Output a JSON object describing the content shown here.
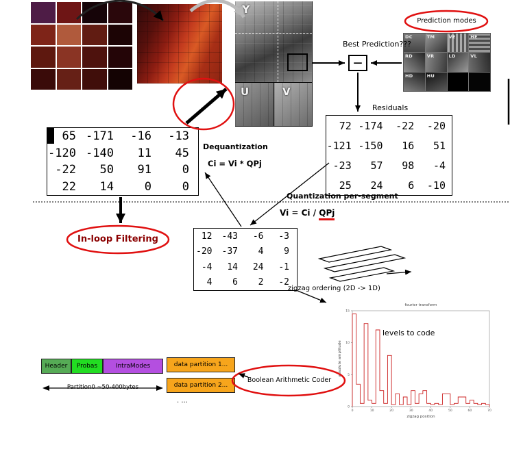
{
  "planes": {
    "y": "Y",
    "u": "U",
    "v": "V"
  },
  "prediction": {
    "circled_label": "Prediction modes",
    "best_label": "Best Prediction???",
    "minus": "—",
    "modes": [
      "DC",
      "TM",
      "VE",
      "HE",
      "RD",
      "VR",
      "LD",
      "VL",
      "HD",
      "HU"
    ]
  },
  "residuals": {
    "label": "Residuals",
    "matrix": [
      [
        "72",
        "-174",
        "-22",
        "-20"
      ],
      [
        "-121",
        "-150",
        "16",
        "51"
      ],
      [
        "-23",
        "57",
        "98",
        "-4"
      ],
      [
        "25",
        "24",
        "6",
        "-10"
      ]
    ]
  },
  "dequantized": {
    "title": "Dequantization",
    "formula": "Ci = Vi * QPj",
    "matrix": [
      [
        "65",
        "-171",
        "-16",
        "-13"
      ],
      [
        "-120",
        "-140",
        "11",
        "45"
      ],
      [
        "-22",
        "50",
        "91",
        "0"
      ],
      [
        "22",
        "14",
        "0",
        "0"
      ]
    ]
  },
  "quantization": {
    "segment_label": "Quantization per-segment",
    "formula_prefix": "Vi = Ci / ",
    "formula_qp": "QPj",
    "matrix": [
      [
        "12",
        "-43",
        "-6",
        "-3"
      ],
      [
        "-20",
        "-37",
        "4",
        "9"
      ],
      [
        "-4",
        "14",
        "24",
        "-1"
      ],
      [
        "4",
        "6",
        "2",
        "-2"
      ]
    ]
  },
  "inloop_label": "In-loop Filtering",
  "zigzag_label": "zigzag ordering  (2D -> 1D)",
  "bitstream": {
    "header": "Header",
    "probas": "Probas",
    "intra_modes": "IntraModes",
    "partition0_note": "Partition0  ~50-400bytes",
    "partitions": [
      "data partition 1...",
      "data partition 2..."
    ],
    "ellipsis": ". ...",
    "coder": "Boolean Arithmetic Coder"
  },
  "chart_data": {
    "type": "line",
    "annotation": "levels to code",
    "title": "fourier transform",
    "xlabel": "zigzag position",
    "ylabel": "absolute amplitude",
    "xlim": [
      0,
      70
    ],
    "ylim": [
      0,
      15
    ],
    "xticks": [
      0,
      10,
      20,
      30,
      40,
      50,
      60,
      70
    ],
    "yticks": [
      0,
      5,
      10,
      15
    ],
    "x": [
      0,
      2,
      4,
      6,
      8,
      10,
      12,
      14,
      16,
      18,
      20,
      22,
      24,
      26,
      28,
      30,
      32,
      34,
      36,
      38,
      40,
      42,
      44,
      46,
      48,
      50,
      52,
      54,
      56,
      58,
      60,
      62,
      64,
      66,
      68,
      70
    ],
    "values": [
      14.5,
      3.5,
      0.5,
      13,
      1,
      0.5,
      12,
      2.5,
      0.5,
      8,
      0.3,
      2,
      0.3,
      1.5,
      0.3,
      2.5,
      0.5,
      2,
      2.5,
      0.5,
      0.3,
      0.5,
      0.3,
      2,
      2,
      0.3,
      0.5,
      1.5,
      1.5,
      0.5,
      1,
      0.5,
      0.3,
      0.5,
      0.3,
      0.2
    ],
    "line_color": "#cc2222"
  },
  "colors": {
    "accent_red": "#e01010",
    "orange": "#f7a51c",
    "green_dark": "#56ab56",
    "green_bright": "#22dd22",
    "purple": "#b44fe0"
  }
}
